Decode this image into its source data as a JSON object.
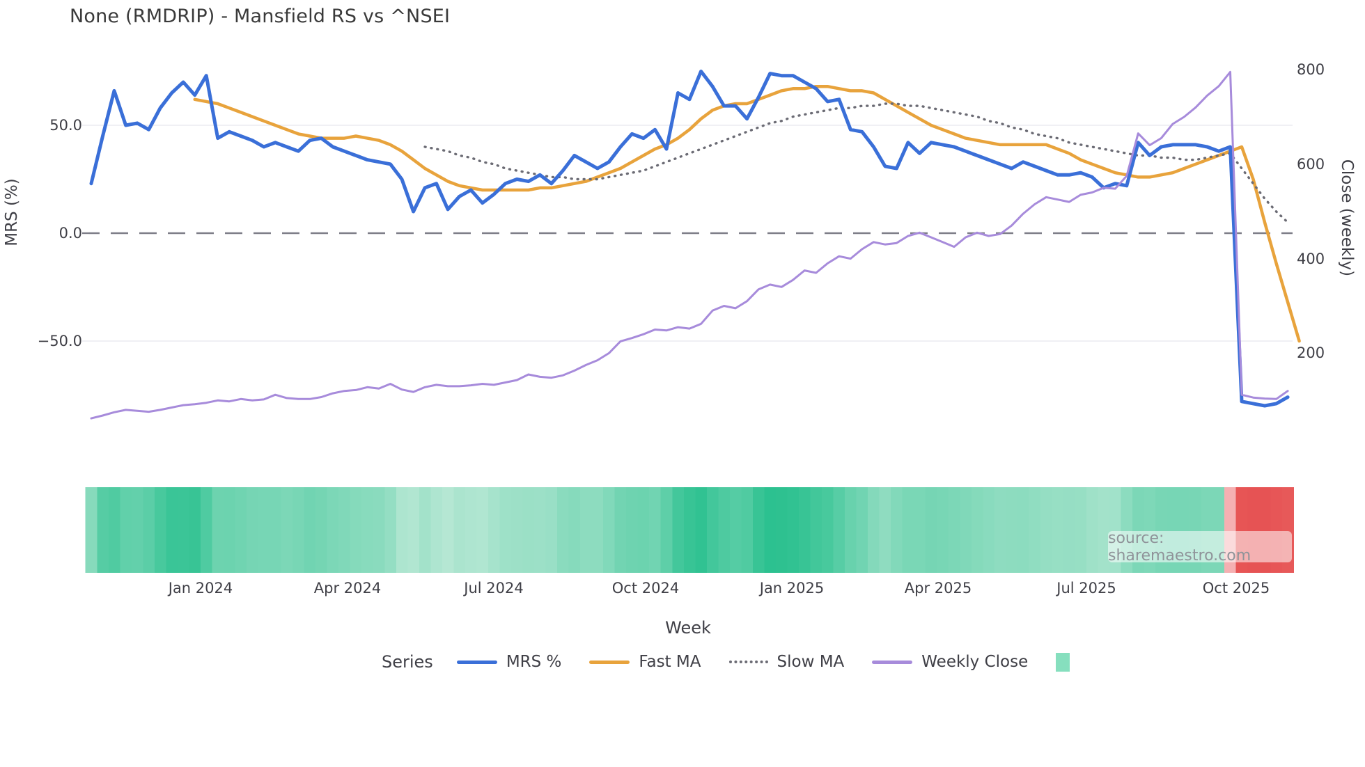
{
  "title": "None (RMDRIP) - Mansfield RS vs ^NSEI",
  "source_note": "source: sharemaestro.com",
  "axes": {
    "x_label": "Week",
    "left_label": "MRS (%)",
    "right_label": "Close (weekly)",
    "left_ticks": [
      {
        "value": 50,
        "label": "50.0"
      },
      {
        "value": 0,
        "label": "0.0"
      },
      {
        "value": -50,
        "label": "−50.0"
      }
    ],
    "right_ticks": [
      {
        "value": 800,
        "label": "800"
      },
      {
        "value": 600,
        "label": "600"
      },
      {
        "value": 400,
        "label": "400"
      },
      {
        "value": 200,
        "label": "200"
      }
    ],
    "x_ticks": [
      {
        "week": 9.5,
        "label": "Jan 2024"
      },
      {
        "week": 22.3,
        "label": "Apr 2024"
      },
      {
        "week": 35.0,
        "label": "Jul 2024"
      },
      {
        "week": 48.2,
        "label": "Oct 2024"
      },
      {
        "week": 60.9,
        "label": "Jan 2025"
      },
      {
        "week": 73.6,
        "label": "Apr 2025"
      },
      {
        "week": 86.5,
        "label": "Jul 2025"
      },
      {
        "week": 99.5,
        "label": "Oct 2025"
      }
    ]
  },
  "legend": {
    "heading": "Series",
    "items": [
      {
        "label": "MRS %",
        "color": "#3a6fd8",
        "style": "line"
      },
      {
        "label": "Fast MA",
        "color": "#e8a33c",
        "style": "line"
      },
      {
        "label": "Slow MA",
        "color": "#6b6b74",
        "style": "dotted"
      },
      {
        "label": "Weekly Close",
        "color": "#a78bdb",
        "style": "line"
      },
      {
        "label": "",
        "color": "#86dfbe",
        "style": "square"
      }
    ]
  },
  "colors": {
    "mrs": "#3a6fd8",
    "fast_ma": "#e8a33c",
    "slow_ma": "#6b6b74",
    "weekly_close": "#a78bdb",
    "zero_line": "#7e7e88",
    "grid": "#ebebf0",
    "title_text": "#3a3a3a",
    "tick_text": "#3f3f46",
    "source_text": "#8f9399"
  },
  "chart_data": {
    "type": "line",
    "title": "None (RMDRIP) - Mansfield RS vs ^NSEI",
    "xlabel": "Week",
    "weeks": 105,
    "x_range_note": "weekly points, late Oct 2023 through late Oct 2025",
    "left_axis": {
      "label": "MRS (%)",
      "ticks": [
        50.0,
        0.0,
        -50.0
      ],
      "zero_line": "dashed",
      "approx_range": [
        -92,
        84
      ]
    },
    "right_axis": {
      "label": "Close (weekly)",
      "ticks": [
        800,
        600,
        400,
        200
      ],
      "approx_range": [
        35,
        840
      ]
    },
    "legend_position": "bottom",
    "grid": "horizontal only, at ±50 on left axis",
    "series": [
      {
        "name": "MRS %",
        "axis": "left",
        "color": "#3a6fd8",
        "style": "solid",
        "values": [
          23,
          45,
          66,
          50,
          51,
          48,
          58,
          65,
          70,
          64,
          73,
          44,
          47,
          45,
          43,
          40,
          42,
          40,
          38,
          43,
          44,
          40,
          38,
          36,
          34,
          33,
          32,
          25,
          10,
          21,
          23,
          11,
          17,
          20,
          14,
          18,
          23,
          25,
          24,
          27,
          23,
          29,
          36,
          33,
          30,
          33,
          40,
          46,
          44,
          48,
          39,
          65,
          62,
          75,
          68,
          59,
          59,
          53,
          63,
          74,
          73,
          73,
          70,
          67,
          61,
          62,
          48,
          47,
          40,
          31,
          30,
          42,
          37,
          42,
          41,
          40,
          38,
          36,
          34,
          32,
          30,
          33,
          31,
          29,
          27,
          27,
          28,
          26,
          21,
          23,
          22,
          42,
          36,
          40,
          41,
          41,
          41,
          40,
          38,
          40,
          -78,
          -79,
          -80,
          -79,
          -76
        ]
      },
      {
        "name": "Fast MA",
        "axis": "left",
        "color": "#e8a33c",
        "style": "solid",
        "values": [
          null,
          null,
          null,
          null,
          null,
          null,
          null,
          null,
          null,
          62,
          61,
          60,
          58,
          56,
          54,
          52,
          50,
          48,
          46,
          45,
          44,
          44,
          44,
          45,
          44,
          43,
          41,
          38,
          34,
          30,
          27,
          24,
          22,
          21,
          20,
          20,
          20,
          20,
          20,
          21,
          21,
          22,
          23,
          24,
          26,
          28,
          30,
          33,
          36,
          39,
          41,
          44,
          48,
          53,
          57,
          59,
          60,
          60,
          62,
          64,
          66,
          67,
          67,
          68,
          68,
          67,
          66,
          66,
          65,
          62,
          59,
          56,
          53,
          50,
          48,
          46,
          44,
          43,
          42,
          41,
          41,
          41,
          41,
          41,
          39,
          37,
          34,
          32,
          30,
          28,
          27,
          26,
          26,
          27,
          28,
          30,
          32,
          34,
          36,
          38,
          40,
          25,
          5,
          -14,
          -32,
          -50
        ]
      },
      {
        "name": "Slow MA",
        "axis": "left",
        "color": "#6b6b74",
        "style": "dotted",
        "values": [
          null,
          null,
          null,
          null,
          null,
          null,
          null,
          null,
          null,
          null,
          null,
          null,
          null,
          null,
          null,
          null,
          null,
          null,
          null,
          null,
          null,
          null,
          null,
          null,
          null,
          null,
          null,
          null,
          null,
          40,
          39,
          38,
          36,
          35,
          33,
          32,
          30,
          29,
          28,
          27,
          26,
          26,
          25,
          25,
          25,
          26,
          27,
          28,
          29,
          31,
          33,
          35,
          37,
          39,
          41,
          43,
          45,
          47,
          49,
          51,
          52,
          54,
          55,
          56,
          57,
          58,
          58,
          59,
          59,
          60,
          60,
          59,
          59,
          58,
          57,
          56,
          55,
          54,
          52,
          51,
          49,
          48,
          46,
          45,
          44,
          42,
          41,
          40,
          39,
          38,
          37,
          36,
          36,
          35,
          35,
          34,
          34,
          35,
          36,
          37,
          30,
          23,
          16,
          10,
          5
        ]
      },
      {
        "name": "Weekly Close",
        "axis": "right",
        "color": "#a78bdb",
        "style": "solid",
        "values": [
          62,
          68,
          75,
          80,
          78,
          76,
          80,
          85,
          90,
          92,
          95,
          100,
          98,
          103,
          100,
          102,
          112,
          105,
          103,
          103,
          107,
          115,
          120,
          122,
          128,
          125,
          135,
          123,
          118,
          128,
          133,
          130,
          130,
          132,
          135,
          133,
          138,
          143,
          155,
          150,
          148,
          153,
          163,
          175,
          185,
          200,
          225,
          232,
          240,
          250,
          248,
          255,
          252,
          262,
          290,
          300,
          295,
          310,
          335,
          345,
          340,
          355,
          375,
          370,
          390,
          405,
          400,
          420,
          435,
          430,
          433,
          448,
          455,
          445,
          435,
          425,
          445,
          455,
          448,
          452,
          470,
          495,
          515,
          530,
          525,
          520,
          535,
          540,
          550,
          548,
          575,
          665,
          640,
          655,
          685,
          700,
          720,
          745,
          765,
          795,
          112,
          106,
          104,
          103,
          120
        ]
      }
    ],
    "heatmap": {
      "description": "weekly color strip under the chart: green intensity tracks positive MRS strength, pink/red marks the crash weeks at far right",
      "positive_scale": [
        "#d5f0e3",
        "#29c08e"
      ],
      "negative_scale": [
        "#f9cdd0",
        "#e54b4b"
      ]
    }
  }
}
